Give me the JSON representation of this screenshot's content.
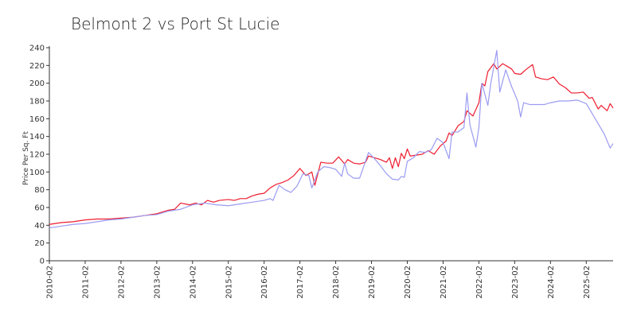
{
  "chart_data": {
    "type": "line",
    "title": "Belmont 2 vs Port St Lucie",
    "xlabel": "",
    "ylabel": "Price Per Sq. Ft",
    "ylim": [
      0,
      240
    ],
    "yticks": [
      0,
      20,
      40,
      60,
      80,
      100,
      120,
      140,
      160,
      180,
      200,
      220,
      240
    ],
    "xlim": [
      "2010-02",
      "2025-11"
    ],
    "xticks": [
      "2010-02",
      "2011-02",
      "2012-02",
      "2013-02",
      "2014-02",
      "2015-02",
      "2016-02",
      "2017-02",
      "2018-02",
      "2019-02",
      "2020-02",
      "2021-02",
      "2022-02",
      "2023-02",
      "2024-02",
      "2025-02"
    ],
    "grid": false,
    "legend": "none",
    "series": [
      {
        "color": "#ee1c2e",
        "points": [
          [
            "2010-02",
            41
          ],
          [
            "2010-06",
            43
          ],
          [
            "2010-10",
            44
          ],
          [
            "2011-02",
            46
          ],
          [
            "2011-06",
            47
          ],
          [
            "2011-10",
            47
          ],
          [
            "2012-02",
            48
          ],
          [
            "2012-06",
            49
          ],
          [
            "2012-10",
            51
          ],
          [
            "2013-02",
            53
          ],
          [
            "2013-06",
            57
          ],
          [
            "2013-08",
            58
          ],
          [
            "2013-10",
            65
          ],
          [
            "2014-01",
            63
          ],
          [
            "2014-03",
            65
          ],
          [
            "2014-05",
            63
          ],
          [
            "2014-07",
            68
          ],
          [
            "2014-09",
            66
          ],
          [
            "2014-11",
            68
          ],
          [
            "2015-02",
            69
          ],
          [
            "2015-04",
            68
          ],
          [
            "2015-06",
            70
          ],
          [
            "2015-08",
            70
          ],
          [
            "2015-10",
            73
          ],
          [
            "2015-12",
            75
          ],
          [
            "2016-02",
            76
          ],
          [
            "2016-04",
            82
          ],
          [
            "2016-06",
            86
          ],
          [
            "2016-08",
            88
          ],
          [
            "2016-10",
            91
          ],
          [
            "2016-12",
            96
          ],
          [
            "2017-02",
            104
          ],
          [
            "2017-04",
            96
          ],
          [
            "2017-06",
            100
          ],
          [
            "2017-07",
            85
          ],
          [
            "2017-09",
            111
          ],
          [
            "2017-11",
            110
          ],
          [
            "2018-01",
            110
          ],
          [
            "2018-03",
            117
          ],
          [
            "2018-05",
            109
          ],
          [
            "2018-06",
            114
          ],
          [
            "2018-08",
            110
          ],
          [
            "2018-10",
            109
          ],
          [
            "2018-12",
            111
          ],
          [
            "2019-01",
            118
          ],
          [
            "2019-03",
            116
          ],
          [
            "2019-05",
            114
          ],
          [
            "2019-07",
            111
          ],
          [
            "2019-08",
            116
          ],
          [
            "2019-09",
            104
          ],
          [
            "2019-10",
            116
          ],
          [
            "2019-11",
            106
          ],
          [
            "2019-12",
            121
          ],
          [
            "2020-01",
            115
          ],
          [
            "2020-02",
            126
          ],
          [
            "2020-03",
            118
          ],
          [
            "2020-05",
            119
          ],
          [
            "2020-07",
            120
          ],
          [
            "2020-09",
            124
          ],
          [
            "2020-11",
            120
          ],
          [
            "2021-01",
            129
          ],
          [
            "2021-03",
            135
          ],
          [
            "2021-04",
            144
          ],
          [
            "2021-05",
            141
          ],
          [
            "2021-07",
            152
          ],
          [
            "2021-09",
            157
          ],
          [
            "2021-10",
            169
          ],
          [
            "2021-12",
            163
          ],
          [
            "2022-02",
            178
          ],
          [
            "2022-03",
            200
          ],
          [
            "2022-04",
            197
          ],
          [
            "2022-05",
            213
          ],
          [
            "2022-07",
            222
          ],
          [
            "2022-08",
            216
          ],
          [
            "2022-10",
            222
          ],
          [
            "2022-12",
            218
          ],
          [
            "2023-01",
            216
          ],
          [
            "2023-02",
            211
          ],
          [
            "2023-04",
            210
          ],
          [
            "2023-06",
            216
          ],
          [
            "2023-08",
            221
          ],
          [
            "2023-09",
            207
          ],
          [
            "2023-11",
            205
          ],
          [
            "2024-01",
            204
          ],
          [
            "2024-03",
            207
          ],
          [
            "2024-05",
            199
          ],
          [
            "2024-07",
            195
          ],
          [
            "2024-09",
            189
          ],
          [
            "2024-11",
            189
          ],
          [
            "2025-01",
            190
          ],
          [
            "2025-03",
            183
          ],
          [
            "2025-04",
            184
          ],
          [
            "2025-06",
            171
          ],
          [
            "2025-07",
            175
          ],
          [
            "2025-09",
            169
          ],
          [
            "2025-10",
            177
          ],
          [
            "2025-11",
            172
          ]
        ]
      },
      {
        "color": "#9b9bf2",
        "points": [
          [
            "2010-02",
            37
          ],
          [
            "2010-06",
            39
          ],
          [
            "2010-10",
            41
          ],
          [
            "2011-02",
            42
          ],
          [
            "2011-06",
            44
          ],
          [
            "2011-10",
            46
          ],
          [
            "2012-02",
            47
          ],
          [
            "2012-06",
            49
          ],
          [
            "2012-10",
            51
          ],
          [
            "2013-02",
            52
          ],
          [
            "2013-06",
            56
          ],
          [
            "2013-10",
            58
          ],
          [
            "2014-02",
            63
          ],
          [
            "2014-06",
            65
          ],
          [
            "2014-10",
            63
          ],
          [
            "2015-02",
            62
          ],
          [
            "2015-06",
            64
          ],
          [
            "2015-10",
            66
          ],
          [
            "2016-02",
            68
          ],
          [
            "2016-04",
            70
          ],
          [
            "2016-05",
            68
          ],
          [
            "2016-07",
            85
          ],
          [
            "2016-09",
            80
          ],
          [
            "2016-11",
            77
          ],
          [
            "2017-01",
            84
          ],
          [
            "2017-03",
            98
          ],
          [
            "2017-05",
            96
          ],
          [
            "2017-06",
            82
          ],
          [
            "2017-08",
            100
          ],
          [
            "2017-10",
            106
          ],
          [
            "2017-12",
            105
          ],
          [
            "2018-02",
            103
          ],
          [
            "2018-04",
            95
          ],
          [
            "2018-05",
            110
          ],
          [
            "2018-06",
            98
          ],
          [
            "2018-08",
            93
          ],
          [
            "2018-10",
            93
          ],
          [
            "2019-01",
            122
          ],
          [
            "2019-03",
            115
          ],
          [
            "2019-05",
            107
          ],
          [
            "2019-07",
            98
          ],
          [
            "2019-09",
            92
          ],
          [
            "2019-11",
            91
          ],
          [
            "2019-12",
            95
          ],
          [
            "2020-01",
            94
          ],
          [
            "2020-02",
            112
          ],
          [
            "2020-04",
            116
          ],
          [
            "2020-06",
            123
          ],
          [
            "2020-08",
            122
          ],
          [
            "2020-10",
            125
          ],
          [
            "2020-12",
            138
          ],
          [
            "2021-02",
            133
          ],
          [
            "2021-04",
            115
          ],
          [
            "2021-05",
            145
          ],
          [
            "2021-07",
            145
          ],
          [
            "2021-09",
            150
          ],
          [
            "2021-10",
            189
          ],
          [
            "2021-11",
            153
          ],
          [
            "2022-01",
            128
          ],
          [
            "2022-02",
            150
          ],
          [
            "2022-03",
            200
          ],
          [
            "2022-05",
            175
          ],
          [
            "2022-06",
            200
          ],
          [
            "2022-08",
            237
          ],
          [
            "2022-09",
            190
          ],
          [
            "2022-11",
            215
          ],
          [
            "2023-01",
            196
          ],
          [
            "2023-03",
            180
          ],
          [
            "2023-04",
            162
          ],
          [
            "2023-05",
            178
          ],
          [
            "2023-07",
            176
          ],
          [
            "2023-09",
            176
          ],
          [
            "2023-12",
            176
          ],
          [
            "2024-02",
            178
          ],
          [
            "2024-05",
            180
          ],
          [
            "2024-08",
            180
          ],
          [
            "2024-11",
            181
          ],
          [
            "2025-02",
            177
          ],
          [
            "2025-05",
            160
          ],
          [
            "2025-08",
            143
          ],
          [
            "2025-10",
            127
          ],
          [
            "2025-11",
            132
          ]
        ]
      }
    ]
  }
}
